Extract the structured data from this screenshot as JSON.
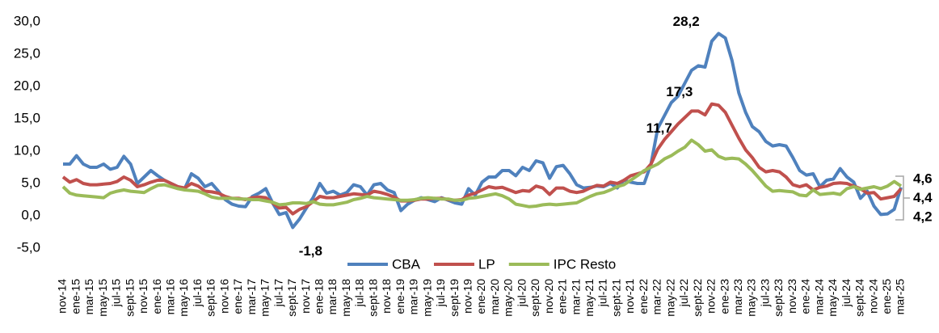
{
  "chart_data": {
    "type": "line",
    "categories": [
      "nov-14",
      null,
      "ene-15",
      null,
      "mar-15",
      null,
      "may-15",
      null,
      "jul-15",
      null,
      "sept-15",
      null,
      "nov-15",
      null,
      "ene-16",
      null,
      "mar-16",
      null,
      "may-16",
      null,
      "jul-16",
      null,
      "sept-16",
      null,
      "nov-16",
      null,
      "ene-17",
      null,
      "mar-17",
      null,
      "may-17",
      null,
      "jul-17",
      null,
      "sept-17",
      null,
      "nov-17",
      null,
      "ene-18",
      null,
      "mar-18",
      null,
      "may-18",
      null,
      "jul-18",
      null,
      "sept-18",
      null,
      "nov-18",
      null,
      "ene-19",
      null,
      "mar-19",
      null,
      "may-19",
      null,
      "jul-19",
      null,
      "sept-19",
      null,
      "nov-19",
      null,
      "ene-20",
      null,
      "mar-20",
      null,
      "may-20",
      null,
      "jul-20",
      null,
      "sept-20",
      null,
      "nov-20",
      null,
      "ene-21",
      null,
      "mar-21",
      null,
      "may-21",
      null,
      "jul-21",
      null,
      "sept-21",
      null,
      "nov-21",
      null,
      "ene-22",
      null,
      "mar-22",
      null,
      "may-22",
      null,
      "jul-22",
      null,
      "sept-22",
      null,
      "nov-22",
      null,
      "ene-23",
      null,
      "mar-23",
      null,
      "may-23",
      null,
      "jul-23",
      null,
      "sept-23",
      null,
      "nov-23",
      null,
      "ene-24",
      null,
      "mar-24",
      null,
      "may-24",
      null,
      "jul-24",
      null,
      "sept-24",
      null,
      "nov-24",
      null,
      "ene-25",
      null,
      "mar-25"
    ],
    "series": [
      {
        "name": "CBA",
        "color": "#4f81bd",
        "values": [
          8,
          8,
          9.3,
          8,
          7.5,
          7.5,
          8,
          7.2,
          7.5,
          9.2,
          8,
          5,
          6,
          7,
          6.2,
          5.5,
          5,
          4.5,
          4.2,
          6.5,
          5.8,
          4.5,
          5,
          3.8,
          2.5,
          1.8,
          1.5,
          1.4,
          3,
          3.5,
          4.2,
          2,
          0.2,
          0.5,
          -1.8,
          -0.5,
          1.2,
          2.8,
          5,
          3.5,
          3.8,
          3.2,
          3.6,
          4.8,
          4.5,
          3.2,
          4.8,
          5,
          4,
          3.6,
          0.8,
          1.8,
          2.4,
          2.8,
          2.5,
          2.2,
          2.8,
          2.4,
          2,
          1.8,
          4.2,
          3.2,
          5.2,
          6,
          6,
          7,
          7,
          6.2,
          7.5,
          7,
          8.5,
          8.2,
          5.8,
          7.6,
          7.8,
          6.5,
          4.8,
          4.3,
          4.4,
          4.6,
          4.5,
          5,
          4.3,
          5.5,
          5.2,
          5,
          5,
          8,
          13.5,
          15.5,
          17.5,
          18.5,
          20.5,
          22.5,
          23.2,
          23,
          27,
          28.2,
          27.5,
          24,
          19,
          16,
          13.8,
          13,
          11.5,
          10.8,
          11,
          10.8,
          9,
          7,
          6.3,
          6.5,
          4.5,
          5.5,
          5.7,
          7.3,
          6,
          5.2,
          2.7,
          3.8,
          1.5,
          0.2,
          0.3,
          1,
          4.4
        ],
        "value_labels": [
          null,
          null,
          null,
          null,
          null,
          null,
          null,
          null,
          null,
          null,
          null,
          null,
          null,
          null,
          null,
          null,
          null,
          null,
          null,
          null,
          null,
          null,
          null,
          null,
          null,
          null,
          null,
          null,
          null,
          null,
          null,
          null,
          null,
          null,
          "-1,8",
          null,
          null,
          null,
          null,
          null,
          null,
          null,
          null,
          null,
          null,
          null,
          null,
          null,
          null,
          null,
          null,
          null,
          null,
          null,
          null,
          null,
          null,
          null,
          null,
          null,
          null,
          null,
          null,
          null,
          null,
          null,
          null,
          null,
          null,
          null,
          null,
          null,
          null,
          null,
          null,
          null,
          null,
          null,
          null,
          null,
          null,
          null,
          null,
          null,
          null,
          null,
          null,
          null,
          null,
          null,
          null,
          null,
          null,
          null,
          null,
          null,
          null,
          "28,2",
          null,
          null,
          null,
          null,
          null,
          null,
          null,
          null,
          null,
          null,
          null,
          null,
          null,
          null,
          null,
          null,
          null,
          null,
          null,
          null,
          null,
          null,
          null,
          null,
          null,
          null,
          "4,4"
        ]
      },
      {
        "name": "LP",
        "color": "#c0504d",
        "values": [
          6,
          5.2,
          5.6,
          5,
          4.8,
          4.8,
          4.9,
          5,
          5.3,
          6,
          5.5,
          4.5,
          4.8,
          5.2,
          5.5,
          5.5,
          5,
          4.5,
          4.3,
          5,
          4.6,
          3.8,
          3.7,
          3.5,
          3,
          2.7,
          2.7,
          2.5,
          2.8,
          2.9,
          2.8,
          2,
          1.2,
          1.3,
          0.3,
          1,
          1.4,
          2.2,
          3,
          2.8,
          2.8,
          3,
          3.2,
          3.4,
          3.3,
          3.2,
          3.8,
          3.6,
          3.3,
          2.9,
          2.3,
          2.3,
          2.4,
          2.6,
          2.6,
          2.7,
          2.7,
          2.5,
          2.4,
          2.5,
          3.2,
          3.5,
          4,
          4.5,
          4.3,
          4.4,
          4,
          3.6,
          3.9,
          3.8,
          4.6,
          4.3,
          3.3,
          4.3,
          4.3,
          3.8,
          3.6,
          3.8,
          4.3,
          4.7,
          4.6,
          5.2,
          5,
          5.5,
          6.2,
          6.5,
          6.8,
          8,
          10.3,
          11.8,
          13,
          14.2,
          15.2,
          16.2,
          16.2,
          15.6,
          17.3,
          17.1,
          16,
          14,
          12,
          10.2,
          9,
          7.5,
          6.8,
          7,
          6.8,
          6,
          4.8,
          4.5,
          4.8,
          4,
          4.4,
          4.6,
          5,
          5.1,
          5,
          4.6,
          4.2,
          3.5,
          3.6,
          2.6,
          2.8,
          3,
          4.2
        ],
        "value_labels": [
          null,
          null,
          null,
          null,
          null,
          null,
          null,
          null,
          null,
          null,
          null,
          null,
          null,
          null,
          null,
          null,
          null,
          null,
          null,
          null,
          null,
          null,
          null,
          null,
          null,
          null,
          null,
          null,
          null,
          null,
          null,
          null,
          null,
          null,
          null,
          null,
          null,
          null,
          null,
          null,
          null,
          null,
          null,
          null,
          null,
          null,
          null,
          null,
          null,
          null,
          null,
          null,
          null,
          null,
          null,
          null,
          null,
          null,
          null,
          null,
          null,
          null,
          null,
          null,
          null,
          null,
          null,
          null,
          null,
          null,
          null,
          null,
          null,
          null,
          null,
          null,
          null,
          null,
          null,
          null,
          null,
          null,
          null,
          null,
          null,
          null,
          null,
          null,
          null,
          null,
          null,
          null,
          null,
          null,
          null,
          null,
          "17,3",
          null,
          null,
          null,
          null,
          null,
          null,
          null,
          null,
          null,
          null,
          null,
          null,
          null,
          null,
          null,
          null,
          null,
          null,
          null,
          null,
          null,
          null,
          null,
          null,
          null,
          null,
          null,
          "4,2"
        ]
      },
      {
        "name": "IPC Resto",
        "color": "#9bbb59",
        "values": [
          4.5,
          3.5,
          3.2,
          3.1,
          3,
          2.9,
          2.8,
          3.5,
          3.8,
          4,
          3.8,
          3.7,
          3.6,
          4.2,
          4.7,
          4.8,
          4.5,
          4.2,
          4,
          3.9,
          3.8,
          3.4,
          2.9,
          2.7,
          2.7,
          2.7,
          2.6,
          2.6,
          2.5,
          2.5,
          2.3,
          2.1,
          1.7,
          1.8,
          2,
          2,
          1.9,
          2.2,
          1.8,
          1.7,
          1.7,
          1.9,
          2.1,
          2.5,
          2.7,
          3,
          2.8,
          2.7,
          2.6,
          2.5,
          2.4,
          2.4,
          2.5,
          2.7,
          2.8,
          2.7,
          2.6,
          2.6,
          2.4,
          2.4,
          2.7,
          2.8,
          3,
          3.2,
          3.4,
          3.1,
          2.6,
          1.8,
          1.6,
          1.4,
          1.5,
          1.7,
          1.8,
          1.7,
          1.8,
          1.9,
          2,
          2.5,
          3,
          3.4,
          3.6,
          4,
          4.5,
          4.8,
          5.5,
          6.2,
          7,
          7.5,
          8,
          8.8,
          9.3,
          10,
          10.6,
          11.7,
          11,
          10,
          10.2,
          9.2,
          8.8,
          8.9,
          8.8,
          8,
          7,
          5.8,
          4.6,
          3.8,
          3.9,
          3.8,
          3.7,
          3.2,
          3.1,
          4,
          3.3,
          3.4,
          3.5,
          3.3,
          4.2,
          4.5,
          4.1,
          4.3,
          4.5,
          4.2,
          4.6,
          5.3,
          4.6
        ],
        "value_labels": [
          null,
          null,
          null,
          null,
          null,
          null,
          null,
          null,
          null,
          null,
          null,
          null,
          null,
          null,
          null,
          null,
          null,
          null,
          null,
          null,
          null,
          null,
          null,
          null,
          null,
          null,
          null,
          null,
          null,
          null,
          null,
          null,
          null,
          null,
          null,
          null,
          null,
          null,
          null,
          null,
          null,
          null,
          null,
          null,
          null,
          null,
          null,
          null,
          null,
          null,
          null,
          null,
          null,
          null,
          null,
          null,
          null,
          null,
          null,
          null,
          null,
          null,
          null,
          null,
          null,
          null,
          null,
          null,
          null,
          null,
          null,
          null,
          null,
          null,
          null,
          null,
          null,
          null,
          null,
          null,
          null,
          null,
          null,
          null,
          null,
          null,
          null,
          null,
          null,
          null,
          null,
          null,
          null,
          "11,7",
          null,
          null,
          null,
          null,
          null,
          null,
          null,
          null,
          null,
          null,
          null,
          null,
          null,
          null,
          null,
          null,
          null,
          null,
          null,
          null,
          null,
          null,
          null,
          null,
          null,
          null,
          null,
          null,
          null,
          null,
          "4,6"
        ]
      }
    ],
    "ylim": [
      -5,
      30
    ],
    "yticks": [
      {
        "value": -5,
        "label": "-5,0"
      },
      {
        "value": 0,
        "label": "0,0"
      },
      {
        "value": 5,
        "label": "5,0"
      },
      {
        "value": 10,
        "label": "10,0"
      },
      {
        "value": 15,
        "label": "15,0"
      },
      {
        "value": 20,
        "label": "20,0"
      },
      {
        "value": 25,
        "label": "25,0"
      },
      {
        "value": 30,
        "label": "30,0"
      }
    ],
    "grid": false,
    "legend": "bottom"
  }
}
